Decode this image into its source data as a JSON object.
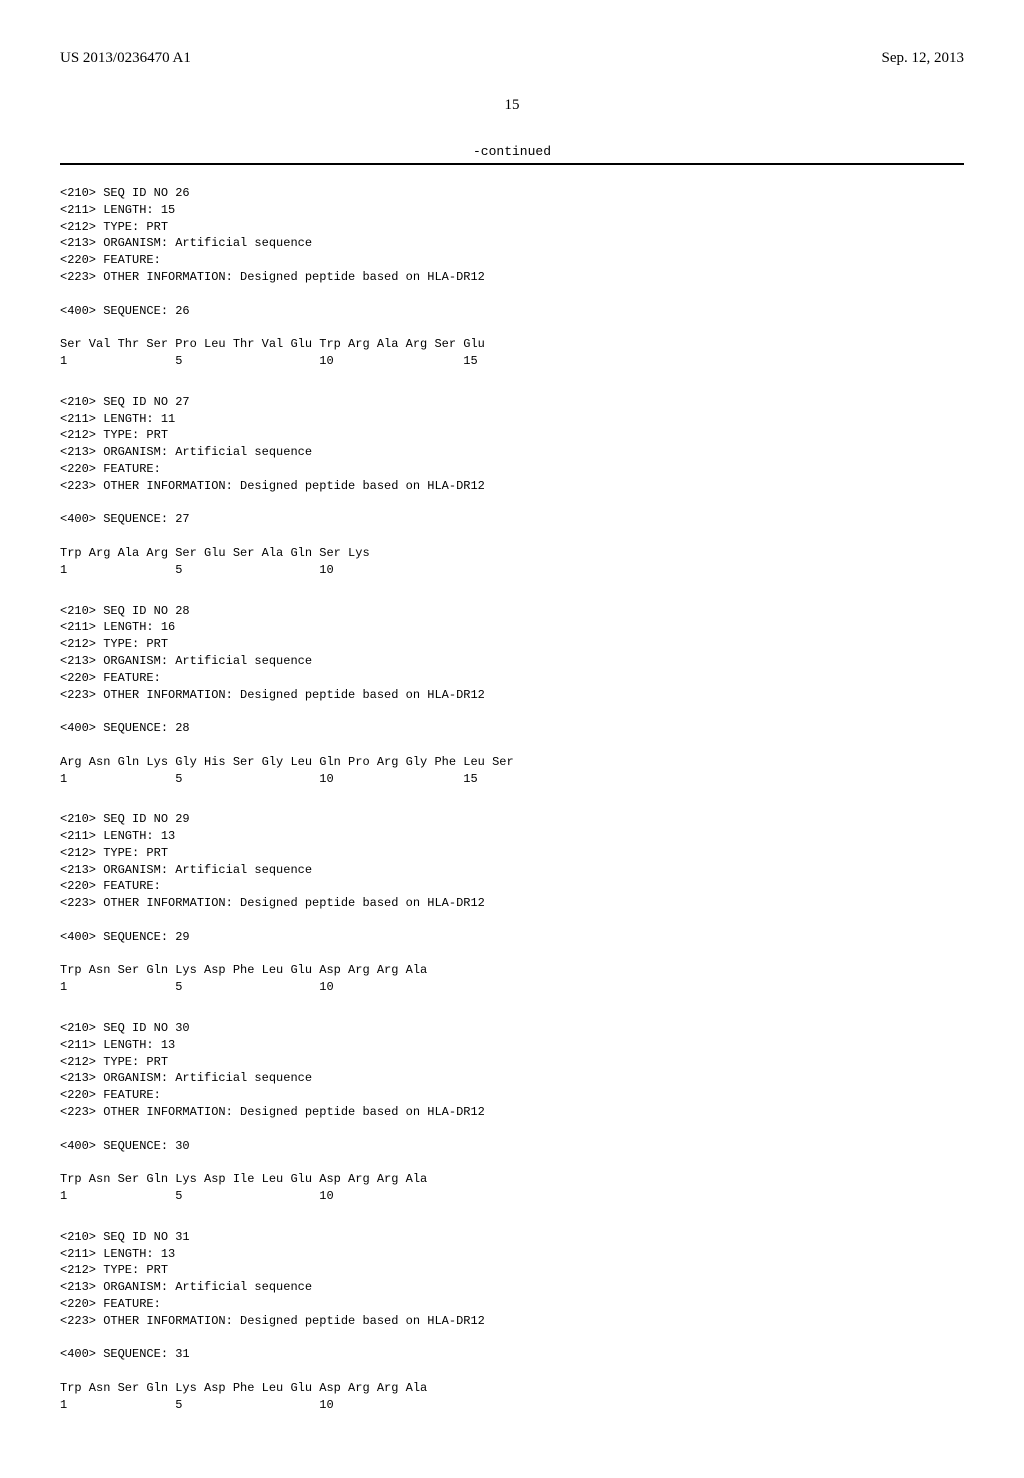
{
  "header": {
    "left": "US 2013/0236470 A1",
    "right": "Sep. 12, 2013"
  },
  "page_number": "15",
  "continued": "-continued",
  "sequences": [
    {
      "id_line": "<210> SEQ ID NO 26",
      "length_line": "<211> LENGTH: 15",
      "type_line": "<212> TYPE: PRT",
      "organism_line": "<213> ORGANISM: Artificial sequence",
      "feature_line": "<220> FEATURE:",
      "info_line": "<223> OTHER INFORMATION: Designed peptide based on HLA-DR12",
      "seq_header": "<400> SEQUENCE: 26",
      "residues": "Ser Val Thr Ser Pro Leu Thr Val Glu Trp Arg Ala Arg Ser Glu",
      "numbers": "1               5                   10                  15"
    },
    {
      "id_line": "<210> SEQ ID NO 27",
      "length_line": "<211> LENGTH: 11",
      "type_line": "<212> TYPE: PRT",
      "organism_line": "<213> ORGANISM: Artificial sequence",
      "feature_line": "<220> FEATURE:",
      "info_line": "<223> OTHER INFORMATION: Designed peptide based on HLA-DR12",
      "seq_header": "<400> SEQUENCE: 27",
      "residues": "Trp Arg Ala Arg Ser Glu Ser Ala Gln Ser Lys",
      "numbers": "1               5                   10"
    },
    {
      "id_line": "<210> SEQ ID NO 28",
      "length_line": "<211> LENGTH: 16",
      "type_line": "<212> TYPE: PRT",
      "organism_line": "<213> ORGANISM: Artificial sequence",
      "feature_line": "<220> FEATURE:",
      "info_line": "<223> OTHER INFORMATION: Designed peptide based on HLA-DR12",
      "seq_header": "<400> SEQUENCE: 28",
      "residues": "Arg Asn Gln Lys Gly His Ser Gly Leu Gln Pro Arg Gly Phe Leu Ser",
      "numbers": "1               5                   10                  15"
    },
    {
      "id_line": "<210> SEQ ID NO 29",
      "length_line": "<211> LENGTH: 13",
      "type_line": "<212> TYPE: PRT",
      "organism_line": "<213> ORGANISM: Artificial sequence",
      "feature_line": "<220> FEATURE:",
      "info_line": "<223> OTHER INFORMATION: Designed peptide based on HLA-DR12",
      "seq_header": "<400> SEQUENCE: 29",
      "residues": "Trp Asn Ser Gln Lys Asp Phe Leu Glu Asp Arg Arg Ala",
      "numbers": "1               5                   10"
    },
    {
      "id_line": "<210> SEQ ID NO 30",
      "length_line": "<211> LENGTH: 13",
      "type_line": "<212> TYPE: PRT",
      "organism_line": "<213> ORGANISM: Artificial sequence",
      "feature_line": "<220> FEATURE:",
      "info_line": "<223> OTHER INFORMATION: Designed peptide based on HLA-DR12",
      "seq_header": "<400> SEQUENCE: 30",
      "residues": "Trp Asn Ser Gln Lys Asp Ile Leu Glu Asp Arg Arg Ala",
      "numbers": "1               5                   10"
    },
    {
      "id_line": "<210> SEQ ID NO 31",
      "length_line": "<211> LENGTH: 13",
      "type_line": "<212> TYPE: PRT",
      "organism_line": "<213> ORGANISM: Artificial sequence",
      "feature_line": "<220> FEATURE:",
      "info_line": "<223> OTHER INFORMATION: Designed peptide based on HLA-DR12",
      "seq_header": "<400> SEQUENCE: 31",
      "residues": "Trp Asn Ser Gln Lys Asp Phe Leu Glu Asp Arg Arg Ala",
      "numbers": "1               5                   10"
    }
  ]
}
